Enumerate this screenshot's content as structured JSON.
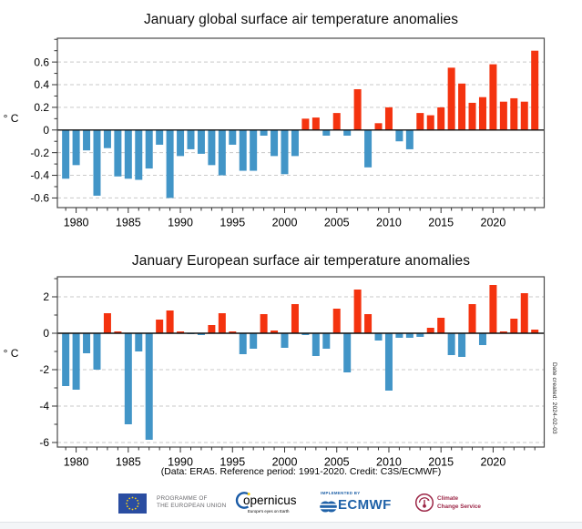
{
  "chart_data": [
    {
      "type": "bar",
      "title": "January global surface air temperature anomalies",
      "ylabel": "° C",
      "categories": [
        1979,
        1980,
        1981,
        1982,
        1983,
        1984,
        1985,
        1986,
        1987,
        1988,
        1989,
        1990,
        1991,
        1992,
        1993,
        1994,
        1995,
        1996,
        1997,
        1998,
        1999,
        2000,
        2001,
        2002,
        2003,
        2004,
        2005,
        2006,
        2007,
        2008,
        2009,
        2010,
        2011,
        2012,
        2013,
        2014,
        2015,
        2016,
        2017,
        2018,
        2019,
        2020,
        2021,
        2022,
        2023,
        2024
      ],
      "values": [
        -0.43,
        -0.31,
        -0.18,
        -0.58,
        -0.16,
        -0.41,
        -0.43,
        -0.44,
        -0.34,
        -0.13,
        -0.6,
        -0.23,
        -0.17,
        -0.21,
        -0.31,
        -0.4,
        -0.13,
        -0.36,
        -0.36,
        -0.05,
        -0.23,
        -0.39,
        -0.23,
        0.1,
        0.11,
        -0.05,
        0.15,
        -0.05,
        0.36,
        -0.33,
        0.06,
        0.2,
        -0.1,
        -0.17,
        0.15,
        0.13,
        0.2,
        0.55,
        0.41,
        0.24,
        0.29,
        0.58,
        0.25,
        0.28,
        0.25,
        0.7
      ],
      "xticks": [
        1980,
        1985,
        1990,
        1995,
        2000,
        2005,
        2010,
        2015,
        2020
      ],
      "yticks": [
        0.6,
        0.4,
        0.2,
        0,
        -0.2,
        -0.4,
        -0.6
      ],
      "ytick_labels": [
        "0.6",
        "0.4",
        "0.2",
        "0",
        "-0.2",
        "-0.4",
        "-0.6"
      ],
      "minor_y_step": 0.1,
      "ylim": [
        -0.685,
        0.81
      ],
      "xlim": [
        1978.2,
        2024.9
      ],
      "grid": "dashed horizontal lines at labeled ticks, solid black zero line",
      "legend": "none",
      "colors": {
        "positive": "#f4330f",
        "negative": "#4295c7"
      }
    },
    {
      "type": "bar",
      "title": "January European surface air temperature anomalies",
      "ylabel": "° C",
      "categories": [
        1979,
        1980,
        1981,
        1982,
        1983,
        1984,
        1985,
        1986,
        1987,
        1988,
        1989,
        1990,
        1991,
        1992,
        1993,
        1994,
        1995,
        1996,
        1997,
        1998,
        1999,
        2000,
        2001,
        2002,
        2003,
        2004,
        2005,
        2006,
        2007,
        2008,
        2009,
        2010,
        2011,
        2012,
        2013,
        2014,
        2015,
        2016,
        2017,
        2018,
        2019,
        2020,
        2021,
        2022,
        2023,
        2024
      ],
      "values": [
        -2.9,
        -3.1,
        -1.1,
        -2.0,
        1.1,
        0.1,
        -5.0,
        -1.0,
        -5.85,
        0.75,
        1.25,
        0.1,
        -0.05,
        -0.1,
        0.45,
        1.1,
        0.1,
        -1.15,
        -0.85,
        1.05,
        0.15,
        -0.8,
        1.6,
        -0.1,
        -1.25,
        -0.85,
        1.35,
        -2.15,
        2.4,
        1.05,
        -0.4,
        -3.15,
        -0.25,
        -0.25,
        -0.2,
        0.3,
        0.85,
        -1.2,
        -1.3,
        1.6,
        -0.65,
        2.65,
        0.1,
        0.8,
        2.2,
        0.2
      ],
      "xticks": [
        1980,
        1985,
        1990,
        1995,
        2000,
        2005,
        2010,
        2015,
        2020
      ],
      "yticks": [
        2,
        0,
        -2,
        -4,
        -6
      ],
      "ytick_labels": [
        "2",
        "0",
        "-2",
        "-4",
        "-6"
      ],
      "minor_y_step": 1,
      "ylim": [
        -6.25,
        3.1
      ],
      "xlim": [
        1978.2,
        2024.9
      ],
      "grid": "dashed horizontal lines at labeled ticks, solid black zero line",
      "legend": "none",
      "colors": {
        "positive": "#f4330f",
        "negative": "#4295c7"
      }
    }
  ],
  "caption": "(Data: ERA5.  Reference period: 1991-2020.  Credit: C3S/ECMWF)",
  "date_note": "Date created: 2024-02-03",
  "footer": {
    "eu_programme": {
      "line1": "PROGRAMME OF",
      "line2": "THE EUROPEAN UNION"
    },
    "copernicus": {
      "wordmark": "opernicus",
      "tagline": "Europe's eyes on Earth"
    },
    "ecmwf": {
      "implemented_by": "IMPLEMENTED BY",
      "wordmark": "ECMWF"
    },
    "c3s": {
      "line1": "Climate",
      "line2": "Change Service"
    }
  }
}
